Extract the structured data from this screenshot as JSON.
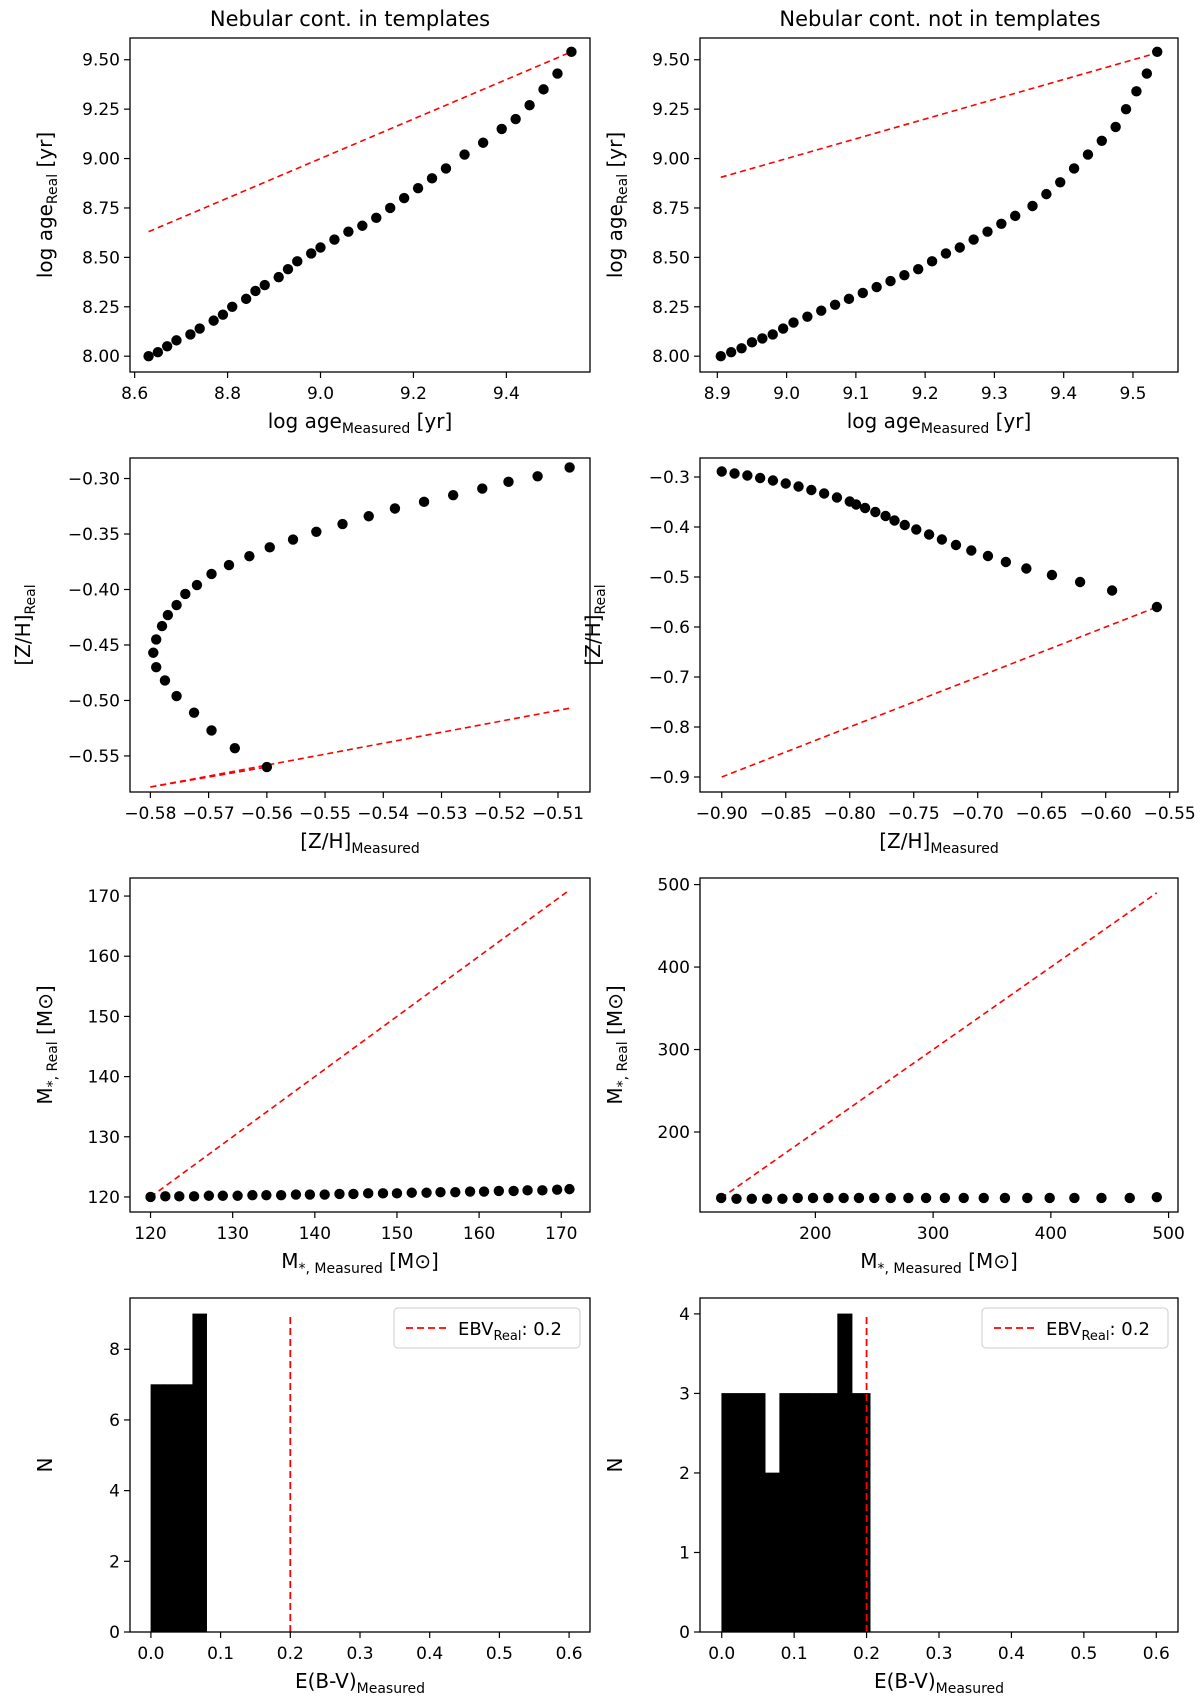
{
  "figure_titles": [
    "Nebular cont. in templates",
    "Nebular cont. not in templates"
  ],
  "colors": {
    "points": "#000000",
    "identity_line": "#ff0000",
    "bars": "#000000",
    "axes": "#000000"
  },
  "chart_data": [
    {
      "id": "age_in",
      "type": "scatter",
      "title": "Nebular cont. in templates",
      "xlabel": {
        "main": "log age",
        "sub": "Measured",
        "unit": " [yr]"
      },
      "ylabel": {
        "main": "log age",
        "sub": "Real",
        "unit": " [yr]"
      },
      "xlim": [
        8.59,
        9.58
      ],
      "ylim": [
        7.92,
        9.61
      ],
      "xticks": [
        8.6,
        8.8,
        9.0,
        9.2,
        9.4
      ],
      "xtick_labels": [
        "8.6",
        "8.8",
        "9.0",
        "9.2",
        "9.4"
      ],
      "yticks": [
        8.0,
        8.25,
        8.5,
        8.75,
        9.0,
        9.25,
        9.5
      ],
      "ytick_labels": [
        "8.00",
        "8.25",
        "8.50",
        "8.75",
        "9.00",
        "9.25",
        "9.50"
      ],
      "line": {
        "x": [
          8.63,
          9.54
        ],
        "y": [
          8.63,
          9.54
        ],
        "style": "dashed",
        "color": "#ff0000"
      },
      "points": {
        "x": [
          8.63,
          8.65,
          8.67,
          8.69,
          8.72,
          8.74,
          8.77,
          8.79,
          8.81,
          8.84,
          8.86,
          8.88,
          8.91,
          8.93,
          8.95,
          8.98,
          9.0,
          9.03,
          9.06,
          9.09,
          9.12,
          9.15,
          9.18,
          9.21,
          9.24,
          9.27,
          9.31,
          9.35,
          9.39,
          9.42,
          9.45,
          9.48,
          9.51,
          9.54
        ],
        "y": [
          8.0,
          8.02,
          8.05,
          8.08,
          8.11,
          8.14,
          8.18,
          8.21,
          8.25,
          8.29,
          8.33,
          8.36,
          8.4,
          8.44,
          8.48,
          8.52,
          8.55,
          8.59,
          8.63,
          8.66,
          8.7,
          8.75,
          8.8,
          8.85,
          8.9,
          8.95,
          9.02,
          9.08,
          9.15,
          9.2,
          9.27,
          9.35,
          9.43,
          9.54
        ]
      }
    },
    {
      "id": "age_out",
      "type": "scatter",
      "title": "Nebular cont. not in templates",
      "xlabel": {
        "main": "log age",
        "sub": "Measured",
        "unit": " [yr]"
      },
      "ylabel": {
        "main": "log age",
        "sub": "Real",
        "unit": " [yr]"
      },
      "xlim": [
        8.875,
        9.565
      ],
      "ylim": [
        7.92,
        9.61
      ],
      "xticks": [
        8.9,
        9.0,
        9.1,
        9.2,
        9.3,
        9.4,
        9.5
      ],
      "xtick_labels": [
        "8.9",
        "9.0",
        "9.1",
        "9.2",
        "9.3",
        "9.4",
        "9.5"
      ],
      "yticks": [
        8.0,
        8.25,
        8.5,
        8.75,
        9.0,
        9.25,
        9.5
      ],
      "ytick_labels": [
        "8.00",
        "8.25",
        "8.50",
        "8.75",
        "9.00",
        "9.25",
        "9.50"
      ],
      "line": {
        "x": [
          8.905,
          9.535
        ],
        "y": [
          8.905,
          9.535
        ],
        "style": "dashed",
        "color": "#ff0000"
      },
      "points": {
        "x": [
          8.905,
          8.92,
          8.935,
          8.95,
          8.965,
          8.98,
          8.995,
          9.01,
          9.03,
          9.05,
          9.07,
          9.09,
          9.11,
          9.13,
          9.15,
          9.17,
          9.19,
          9.21,
          9.23,
          9.25,
          9.27,
          9.29,
          9.31,
          9.33,
          9.355,
          9.375,
          9.395,
          9.415,
          9.435,
          9.455,
          9.475,
          9.49,
          9.505,
          9.52,
          9.535
        ],
        "y": [
          8.0,
          8.02,
          8.04,
          8.07,
          8.09,
          8.11,
          8.14,
          8.17,
          8.2,
          8.23,
          8.26,
          8.29,
          8.32,
          8.35,
          8.38,
          8.41,
          8.44,
          8.48,
          8.52,
          8.55,
          8.59,
          8.63,
          8.67,
          8.71,
          8.76,
          8.82,
          8.88,
          8.95,
          9.02,
          9.09,
          9.16,
          9.25,
          9.34,
          9.43,
          9.54
        ]
      }
    },
    {
      "id": "metal_in",
      "type": "scatter",
      "xlabel": {
        "main": "[Z/H]",
        "sub": "Measured",
        "unit": ""
      },
      "ylabel": {
        "main": "[Z/H]",
        "sub": "Real",
        "unit": ""
      },
      "xlim": [
        -0.5835,
        -0.5045
      ],
      "ylim": [
        -0.5825,
        -0.2815
      ],
      "xticks": [
        -0.58,
        -0.57,
        -0.56,
        -0.55,
        -0.54,
        -0.53,
        -0.52,
        -0.51
      ],
      "xtick_labels": [
        "−0.58",
        "−0.57",
        "−0.56",
        "−0.55",
        "−0.54",
        "−0.53",
        "−0.52",
        "−0.51"
      ],
      "yticks": [
        -0.55,
        -0.5,
        -0.45,
        -0.4,
        -0.35,
        -0.3
      ],
      "ytick_labels": [
        "−0.55",
        "−0.50",
        "−0.45",
        "−0.40",
        "−0.35",
        "−0.30"
      ],
      "line": {
        "x": [
          -0.58,
          -0.508
        ],
        "y": [
          -0.578,
          -0.507
        ],
        "style": "dashed",
        "color": "#ff0000"
      },
      "line2": {
        "x": [
          -0.58,
          -0.56
        ],
        "y": [
          -0.578,
          -0.56
        ],
        "style": "dashed",
        "color": "#ff0000"
      },
      "points": {
        "x": [
          -0.56,
          -0.5655,
          -0.5695,
          -0.5725,
          -0.5755,
          -0.5775,
          -0.579,
          -0.5795,
          -0.579,
          -0.578,
          -0.577,
          -0.5755,
          -0.574,
          -0.572,
          -0.5695,
          -0.5665,
          -0.563,
          -0.5595,
          -0.5555,
          -0.5515,
          -0.547,
          -0.5425,
          -0.538,
          -0.533,
          -0.528,
          -0.523,
          -0.5185,
          -0.5135,
          -0.508
        ],
        "y": [
          -0.56,
          -0.543,
          -0.527,
          -0.511,
          -0.496,
          -0.482,
          -0.47,
          -0.457,
          -0.445,
          -0.433,
          -0.423,
          -0.414,
          -0.404,
          -0.396,
          -0.386,
          -0.378,
          -0.37,
          -0.362,
          -0.355,
          -0.348,
          -0.341,
          -0.334,
          -0.327,
          -0.321,
          -0.315,
          -0.309,
          -0.303,
          -0.298,
          -0.29
        ]
      }
    },
    {
      "id": "metal_out",
      "type": "scatter",
      "xlabel": {
        "main": "[Z/H]",
        "sub": "Measured",
        "unit": ""
      },
      "ylabel": {
        "main": "[Z/H]",
        "sub": "Real",
        "unit": ""
      },
      "xlim": [
        -0.917,
        -0.5435
      ],
      "ylim": [
        -0.93,
        -0.262
      ],
      "xticks": [
        -0.9,
        -0.85,
        -0.8,
        -0.75,
        -0.7,
        -0.65,
        -0.6,
        -0.55
      ],
      "xtick_labels": [
        "−0.90",
        "−0.85",
        "−0.80",
        "−0.75",
        "−0.70",
        "−0.65",
        "−0.60",
        "−0.55"
      ],
      "yticks": [
        -0.9,
        -0.8,
        -0.7,
        -0.6,
        -0.5,
        -0.4,
        -0.3
      ],
      "ytick_labels": [
        "−0.9",
        "−0.8",
        "−0.7",
        "−0.6",
        "−0.5",
        "−0.4",
        "−0.3"
      ],
      "line": {
        "x": [
          -0.9,
          -0.56
        ],
        "y": [
          -0.9,
          -0.56
        ],
        "style": "dashed",
        "color": "#ff0000"
      },
      "points": {
        "x": [
          -0.9,
          -0.89,
          -0.88,
          -0.87,
          -0.86,
          -0.85,
          -0.84,
          -0.83,
          -0.82,
          -0.81,
          -0.8,
          -0.795,
          -0.788,
          -0.78,
          -0.772,
          -0.765,
          -0.757,
          -0.748,
          -0.738,
          -0.728,
          -0.717,
          -0.705,
          -0.692,
          -0.678,
          -0.662,
          -0.642,
          -0.62,
          -0.595,
          -0.56
        ],
        "y": [
          -0.289,
          -0.293,
          -0.297,
          -0.302,
          -0.307,
          -0.313,
          -0.319,
          -0.326,
          -0.333,
          -0.341,
          -0.349,
          -0.355,
          -0.362,
          -0.37,
          -0.378,
          -0.387,
          -0.396,
          -0.405,
          -0.415,
          -0.425,
          -0.436,
          -0.447,
          -0.458,
          -0.47,
          -0.483,
          -0.496,
          -0.51,
          -0.527,
          -0.56
        ]
      }
    },
    {
      "id": "mass_in",
      "type": "scatter",
      "xlabel": {
        "main": "M",
        "sub": "*, Measured",
        "unit": " [M⊙]"
      },
      "ylabel": {
        "main": "M",
        "sub": "*, Real",
        "unit": " [M⊙]"
      },
      "xlim": [
        117.5,
        173.5
      ],
      "ylim": [
        117.5,
        173.0
      ],
      "xticks": [
        120,
        130,
        140,
        150,
        160,
        170
      ],
      "xtick_labels": [
        "120",
        "130",
        "140",
        "150",
        "160",
        "170"
      ],
      "yticks": [
        120,
        130,
        140,
        150,
        160,
        170
      ],
      "ytick_labels": [
        "120",
        "130",
        "140",
        "150",
        "160",
        "170"
      ],
      "line": {
        "x": [
          120,
          171
        ],
        "y": [
          120,
          171
        ],
        "style": "dashed",
        "color": "#ff0000"
      },
      "points": {
        "x": [
          120,
          121.8,
          123.5,
          125.3,
          127.1,
          128.8,
          130.6,
          132.4,
          134.1,
          135.9,
          137.7,
          139.4,
          141.2,
          143.0,
          144.7,
          146.5,
          148.3,
          150.0,
          151.8,
          153.6,
          155.3,
          157.1,
          158.9,
          160.6,
          162.4,
          164.2,
          165.9,
          167.7,
          169.5,
          171
        ],
        "y": [
          120.0,
          120.1,
          120.1,
          120.1,
          120.2,
          120.2,
          120.2,
          120.3,
          120.3,
          120.3,
          120.4,
          120.4,
          120.4,
          120.5,
          120.5,
          120.6,
          120.6,
          120.6,
          120.7,
          120.7,
          120.8,
          120.8,
          120.9,
          120.9,
          121.0,
          121.0,
          121.1,
          121.1,
          121.2,
          121.3
        ]
      }
    },
    {
      "id": "mass_out",
      "type": "scatter",
      "xlabel": {
        "main": "M",
        "sub": "*, Measured",
        "unit": " [M⊙]"
      },
      "ylabel": {
        "main": "M",
        "sub": "*, Real",
        "unit": " [M⊙]"
      },
      "xlim": [
        102,
        508
      ],
      "ylim": [
        103,
        508
      ],
      "xticks": [
        200,
        300,
        400,
        500
      ],
      "xtick_labels": [
        "200",
        "300",
        "400",
        "500"
      ],
      "yticks": [
        200,
        300,
        400,
        500
      ],
      "ytick_labels": [
        "200",
        "300",
        "400",
        "500"
      ],
      "line": {
        "x": [
          120,
          490
        ],
        "y": [
          120,
          490
        ],
        "style": "dashed",
        "color": "#ff0000"
      },
      "points": {
        "x": [
          120,
          133,
          146,
          159,
          172,
          185,
          198,
          211,
          224,
          237,
          250,
          264,
          279,
          294,
          310,
          326,
          343,
          361,
          380,
          399,
          420,
          443,
          467,
          490
        ],
        "y": [
          120,
          119,
          119,
          119,
          119,
          120,
          120,
          120,
          120,
          120,
          120,
          120,
          120,
          120,
          120,
          120,
          120,
          120,
          120,
          120,
          120,
          120,
          120,
          121
        ]
      }
    },
    {
      "id": "ebv_in",
      "type": "bar",
      "xlabel": {
        "main": "E(B-V)",
        "sub": "Measured",
        "unit": ""
      },
      "ylabel": {
        "main": "N",
        "sub": "",
        "unit": ""
      },
      "xlim": [
        -0.03,
        0.63
      ],
      "ylim": [
        0,
        9.45
      ],
      "xticks": [
        0.0,
        0.1,
        0.2,
        0.3,
        0.4,
        0.5,
        0.6
      ],
      "xtick_labels": [
        "0.0",
        "0.1",
        "0.2",
        "0.3",
        "0.4",
        "0.5",
        "0.6"
      ],
      "yticks": [
        0,
        2,
        4,
        6,
        8
      ],
      "ytick_labels": [
        "0",
        "2",
        "4",
        "6",
        "8"
      ],
      "bins": [
        [
          0.0,
          0.02,
          7
        ],
        [
          0.02,
          0.04,
          7
        ],
        [
          0.04,
          0.06,
          7
        ],
        [
          0.06,
          0.08,
          9
        ]
      ],
      "vline": {
        "x": 0.2,
        "ymax": 9.0,
        "color": "#ff0000"
      },
      "legend": {
        "main": "EBV",
        "sub": "Real",
        "value": ": 0.2",
        "position": "top-right"
      }
    },
    {
      "id": "ebv_out",
      "type": "bar",
      "xlabel": {
        "main": "E(B-V)",
        "sub": "Measured",
        "unit": ""
      },
      "ylabel": {
        "main": "N",
        "sub": "",
        "unit": ""
      },
      "xlim": [
        -0.03,
        0.63
      ],
      "ylim": [
        0,
        4.2
      ],
      "xticks": [
        0.0,
        0.1,
        0.2,
        0.3,
        0.4,
        0.5,
        0.6
      ],
      "xtick_labels": [
        "0.0",
        "0.1",
        "0.2",
        "0.3",
        "0.4",
        "0.5",
        "0.6"
      ],
      "yticks": [
        0,
        1,
        2,
        3,
        4
      ],
      "ytick_labels": [
        "0",
        "1",
        "2",
        "3",
        "4"
      ],
      "bins": [
        [
          0.0,
          0.02,
          3
        ],
        [
          0.02,
          0.04,
          3
        ],
        [
          0.04,
          0.06,
          3
        ],
        [
          0.06,
          0.08,
          2
        ],
        [
          0.08,
          0.1,
          3
        ],
        [
          0.1,
          0.12,
          3
        ],
        [
          0.12,
          0.14,
          3
        ],
        [
          0.14,
          0.16,
          3
        ],
        [
          0.16,
          0.18,
          4
        ],
        [
          0.18,
          0.205,
          3
        ]
      ],
      "vline": {
        "x": 0.2,
        "ymax": 4.0,
        "color": "#ff0000"
      },
      "legend": {
        "main": "EBV",
        "sub": "Real",
        "value": ": 0.2",
        "position": "top-right"
      }
    }
  ]
}
